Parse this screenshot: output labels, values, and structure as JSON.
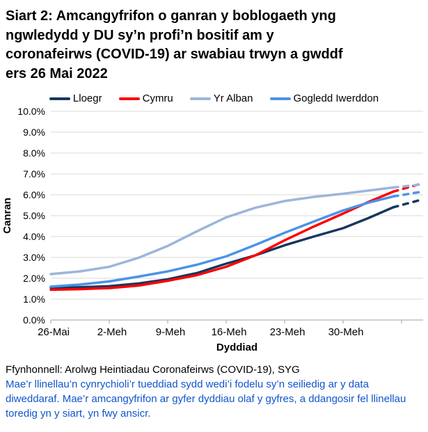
{
  "title": "Siart 2: Amcangyfrifon o ganran y boblogaeth yng\nngwledydd y DU sy’n profi’n bositif am y\ncoronafeirws (COVID-19) ar swabiau trwyn a gwddf\ners 26 Mai 2022",
  "legend": [
    {
      "label": "Lloegr",
      "color": "#17375e"
    },
    {
      "label": "Cymru",
      "color": "#ff0000"
    },
    {
      "label": "Yr Alban",
      "color": "#9cb6da"
    },
    {
      "label": "Gogledd Iwerddon",
      "color": "#4b93e8"
    }
  ],
  "chart_data": {
    "type": "line",
    "title": "Siart 2: Amcangyfrifon o ganran y boblogaeth yng ngwledydd y DU sy’n profi’n bositif am y coronafeirws (COVID-19) ar swabiau trwyn a gwddf ers 26 Mai 2022",
    "xlabel": "Dyddiad",
    "ylabel": "Canran",
    "ylim": [
      0,
      10
    ],
    "grid": "horizontal",
    "legend_position": "top",
    "ytick_labels": [
      "0.0%",
      "1.0%",
      "2.0%",
      "3.0%",
      "4.0%",
      "5.0%",
      "6.0%",
      "7.0%",
      "8.0%",
      "9.0%",
      "10.0%"
    ],
    "xticks": [
      {
        "day": 0,
        "label": "26-Mai"
      },
      {
        "day": 7,
        "label": "2-Meh"
      },
      {
        "day": 14,
        "label": "9-Meh"
      },
      {
        "day": 21,
        "label": "16-Meh"
      },
      {
        "day": 28,
        "label": "23-Meh"
      },
      {
        "day": 35,
        "label": "30-Meh"
      },
      {
        "day": 42,
        "label": ""
      }
    ],
    "days": [
      0,
      3.5,
      7,
      10.5,
      14,
      17.5,
      21,
      24.5,
      28,
      31.5,
      35,
      38,
      41,
      44.5
    ],
    "dash_from_day": 41,
    "dashed_meaning": "llinellau toredig = amcangyfrifon mwy ansicr ar gyfer dyddiau olaf y gyfres",
    "series": [
      {
        "name": "Lloegr",
        "color": "#17375e",
        "values": [
          1.55,
          1.57,
          1.62,
          1.75,
          1.95,
          2.25,
          2.7,
          3.1,
          3.58,
          4.0,
          4.4,
          4.88,
          5.4,
          5.78
        ]
      },
      {
        "name": "Cymru",
        "color": "#ff0000",
        "values": [
          1.45,
          1.48,
          1.53,
          1.65,
          1.88,
          2.15,
          2.55,
          3.1,
          3.82,
          4.48,
          5.1,
          5.65,
          6.15,
          6.55
        ]
      },
      {
        "name": "Yr Alban",
        "color": "#9cb6da",
        "values": [
          2.2,
          2.33,
          2.55,
          2.98,
          3.55,
          4.25,
          4.92,
          5.38,
          5.7,
          5.9,
          6.05,
          6.2,
          6.35,
          6.5
        ]
      },
      {
        "name": "Gogledd Iwerddon",
        "color": "#4b93e8",
        "values": [
          1.6,
          1.7,
          1.85,
          2.08,
          2.33,
          2.65,
          3.05,
          3.6,
          4.18,
          4.72,
          5.25,
          5.62,
          5.92,
          6.15
        ]
      }
    ]
  },
  "footer": {
    "source": "Ffynhonnell: Arolwg Heintiadau Coronafeirws (COVID-19), SYG",
    "note": "Mae’r llinellau’n cynrychioli’r tueddiad sydd wedi’i fodelu sy’n seiliedig ar y data\ndiweddaraf. Mae’r amcangyfrifon ar gyfer dyddiau olaf y gyfres, a ddangosir fel llinellau\ntoredig yn y siart, yn fwy ansicr."
  }
}
